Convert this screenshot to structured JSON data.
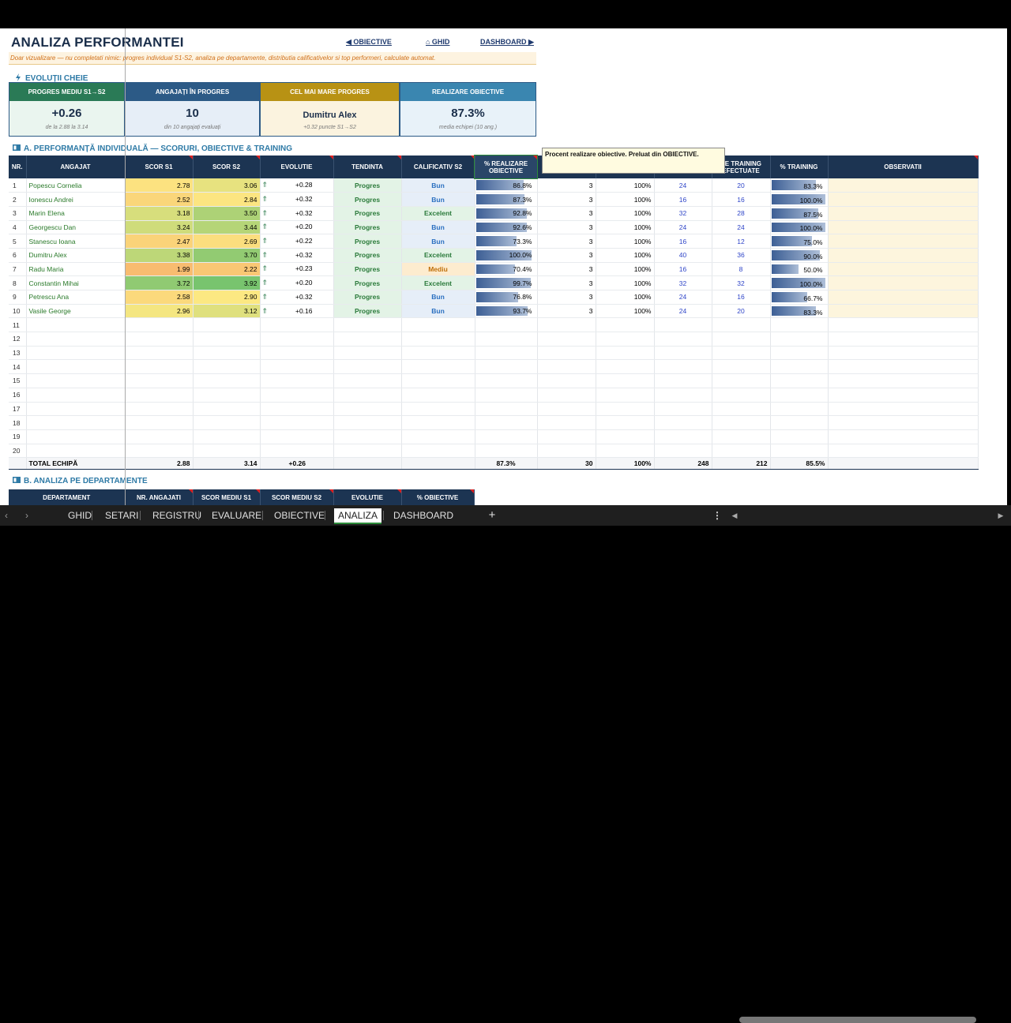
{
  "header": {
    "title": "ANALIZA PERFORMANTEI",
    "nav": [
      "◀ OBIECTIVE",
      "⌂ GHID",
      "DASHBOARD ▶"
    ],
    "note": "Doar vizualizare — nu completati nimic: progres individual S1-S2, analiza pe departamente, distributia calificativelor si top performeri, calculate automat."
  },
  "kpi_section": "EVOLUȚII CHEIE",
  "kpis": [
    {
      "title": "PROGRES MEDIU S1→S2",
      "value": "+0.26",
      "sub": "de la 2.88 la 3.14",
      "color": "#2a7a56",
      "bg": "#eaf5ef"
    },
    {
      "title": "ANGAJAȚI ÎN PROGRES",
      "value": "10",
      "sub": "din 10 angajați evaluați",
      "color": "#2c5a86",
      "bg": "#e6eef7"
    },
    {
      "title": "CEL MAI MARE PROGRES",
      "value": "Dumitru Alex",
      "sub": "+0.32 puncte S1→S2",
      "color": "#b89214",
      "bg": "#fbf3df"
    },
    {
      "title": "REALIZARE OBIECTIVE",
      "value": "87.3%",
      "sub": "media echipei (10 ang.)",
      "color": "#3a86b0",
      "bg": "#e8f2f9"
    }
  ],
  "section_a": "A. PERFORMANȚĂ INDIVIDUALĂ — SCORURI, OBIECTIVE & TRAINING",
  "columns": [
    "NR.",
    "ANGAJAT",
    "SCOR S1",
    "SCOR S2",
    "EVOLUTIE",
    "TENDINTA",
    "CALIFICATIV S2",
    "% REALIZARE OBIECTIVE",
    "",
    "",
    "",
    "RE TRAINING EFECTUATE",
    "% TRAINING",
    "OBSERVATII"
  ],
  "rows": [
    {
      "nr": "1",
      "name": "Popescu Cornelia",
      "s1": "2.78",
      "s2": "3.06",
      "evo": "+0.28",
      "tend": "Progres",
      "calif": "Bun",
      "real": "86.8%",
      "real_v": 0.868,
      "ob": "3",
      "pct": "100%",
      "tp": "24",
      "te": "20",
      "tr": "83.3%",
      "tr_v": 0.833
    },
    {
      "nr": "2",
      "name": "Ionescu Andrei",
      "s1": "2.52",
      "s2": "2.84",
      "evo": "+0.32",
      "tend": "Progres",
      "calif": "Bun",
      "real": "87.3%",
      "real_v": 0.873,
      "ob": "3",
      "pct": "100%",
      "tp": "16",
      "te": "16",
      "tr": "100.0%",
      "tr_v": 1.0
    },
    {
      "nr": "3",
      "name": "Marin Elena",
      "s1": "3.18",
      "s2": "3.50",
      "evo": "+0.32",
      "tend": "Progres",
      "calif": "Excelent",
      "real": "92.8%",
      "real_v": 0.928,
      "ob": "3",
      "pct": "100%",
      "tp": "32",
      "te": "28",
      "tr": "87.5%",
      "tr_v": 0.875
    },
    {
      "nr": "4",
      "name": "Georgescu Dan",
      "s1": "3.24",
      "s2": "3.44",
      "evo": "+0.20",
      "tend": "Progres",
      "calif": "Bun",
      "real": "92.6%",
      "real_v": 0.926,
      "ob": "3",
      "pct": "100%",
      "tp": "24",
      "te": "24",
      "tr": "100.0%",
      "tr_v": 1.0
    },
    {
      "nr": "5",
      "name": "Stanescu Ioana",
      "s1": "2.47",
      "s2": "2.69",
      "evo": "+0.22",
      "tend": "Progres",
      "calif": "Bun",
      "real": "73.3%",
      "real_v": 0.733,
      "ob": "3",
      "pct": "100%",
      "tp": "16",
      "te": "12",
      "tr": "75.0%",
      "tr_v": 0.75
    },
    {
      "nr": "6",
      "name": "Dumitru Alex",
      "s1": "3.38",
      "s2": "3.70",
      "evo": "+0.32",
      "tend": "Progres",
      "calif": "Excelent",
      "real": "100.0%",
      "real_v": 1.0,
      "ob": "3",
      "pct": "100%",
      "tp": "40",
      "te": "36",
      "tr": "90.0%",
      "tr_v": 0.9
    },
    {
      "nr": "7",
      "name": "Radu Maria",
      "s1": "1.99",
      "s2": "2.22",
      "evo": "+0.23",
      "tend": "Progres",
      "calif": "Mediu",
      "real": "70.4%",
      "real_v": 0.704,
      "ob": "3",
      "pct": "100%",
      "tp": "16",
      "te": "8",
      "tr": "50.0%",
      "tr_v": 0.5
    },
    {
      "nr": "8",
      "name": "Constantin Mihai",
      "s1": "3.72",
      "s2": "3.92",
      "evo": "+0.20",
      "tend": "Progres",
      "calif": "Excelent",
      "real": "99.7%",
      "real_v": 0.997,
      "ob": "3",
      "pct": "100%",
      "tp": "32",
      "te": "32",
      "tr": "100.0%",
      "tr_v": 1.0
    },
    {
      "nr": "9",
      "name": "Petrescu Ana",
      "s1": "2.58",
      "s2": "2.90",
      "evo": "+0.32",
      "tend": "Progres",
      "calif": "Bun",
      "real": "76.8%",
      "real_v": 0.768,
      "ob": "3",
      "pct": "100%",
      "tp": "24",
      "te": "16",
      "tr": "66.7%",
      "tr_v": 0.667
    },
    {
      "nr": "10",
      "name": "Vasile George",
      "s1": "2.96",
      "s2": "3.12",
      "evo": "+0.16",
      "tend": "Progres",
      "calif": "Bun",
      "real": "93.7%",
      "real_v": 0.937,
      "ob": "3",
      "pct": "100%",
      "tp": "24",
      "te": "20",
      "tr": "83.3%",
      "tr_v": 0.833
    }
  ],
  "empty_rows": [
    "11",
    "12",
    "13",
    "14",
    "15",
    "16",
    "17",
    "18",
    "19",
    "20"
  ],
  "total": {
    "label": "TOTAL ECHIPĂ",
    "s1": "2.88",
    "s2": "3.14",
    "evo": "+0.26",
    "real": "87.3%",
    "ob": "30",
    "pct": "100%",
    "tp": "248",
    "te": "212",
    "tr": "85.5%"
  },
  "tooltip": "Procent realizare obiective. Preluat din OBIECTIVE.",
  "section_b": "B. ANALIZA PE DEPARTAMENTE",
  "dept_columns": [
    "DEPARTAMENT",
    "NR. ANGAJATI",
    "SCOR MEDIU S1",
    "SCOR MEDIU S2",
    "EVOLUTIE",
    "% OBIECTIVE"
  ],
  "tabs": [
    "GHID",
    "SETARI",
    "REGISTRU",
    "EVALUARE",
    "OBIECTIVE",
    "ANALIZA",
    "DASHBOARD"
  ],
  "active_tab": "ANALIZA",
  "add_sheet": "+",
  "colors": {
    "header_navy": "#1c3452",
    "progress_green": "#2a7a2a",
    "calif_blue": "#2a6fc0"
  }
}
